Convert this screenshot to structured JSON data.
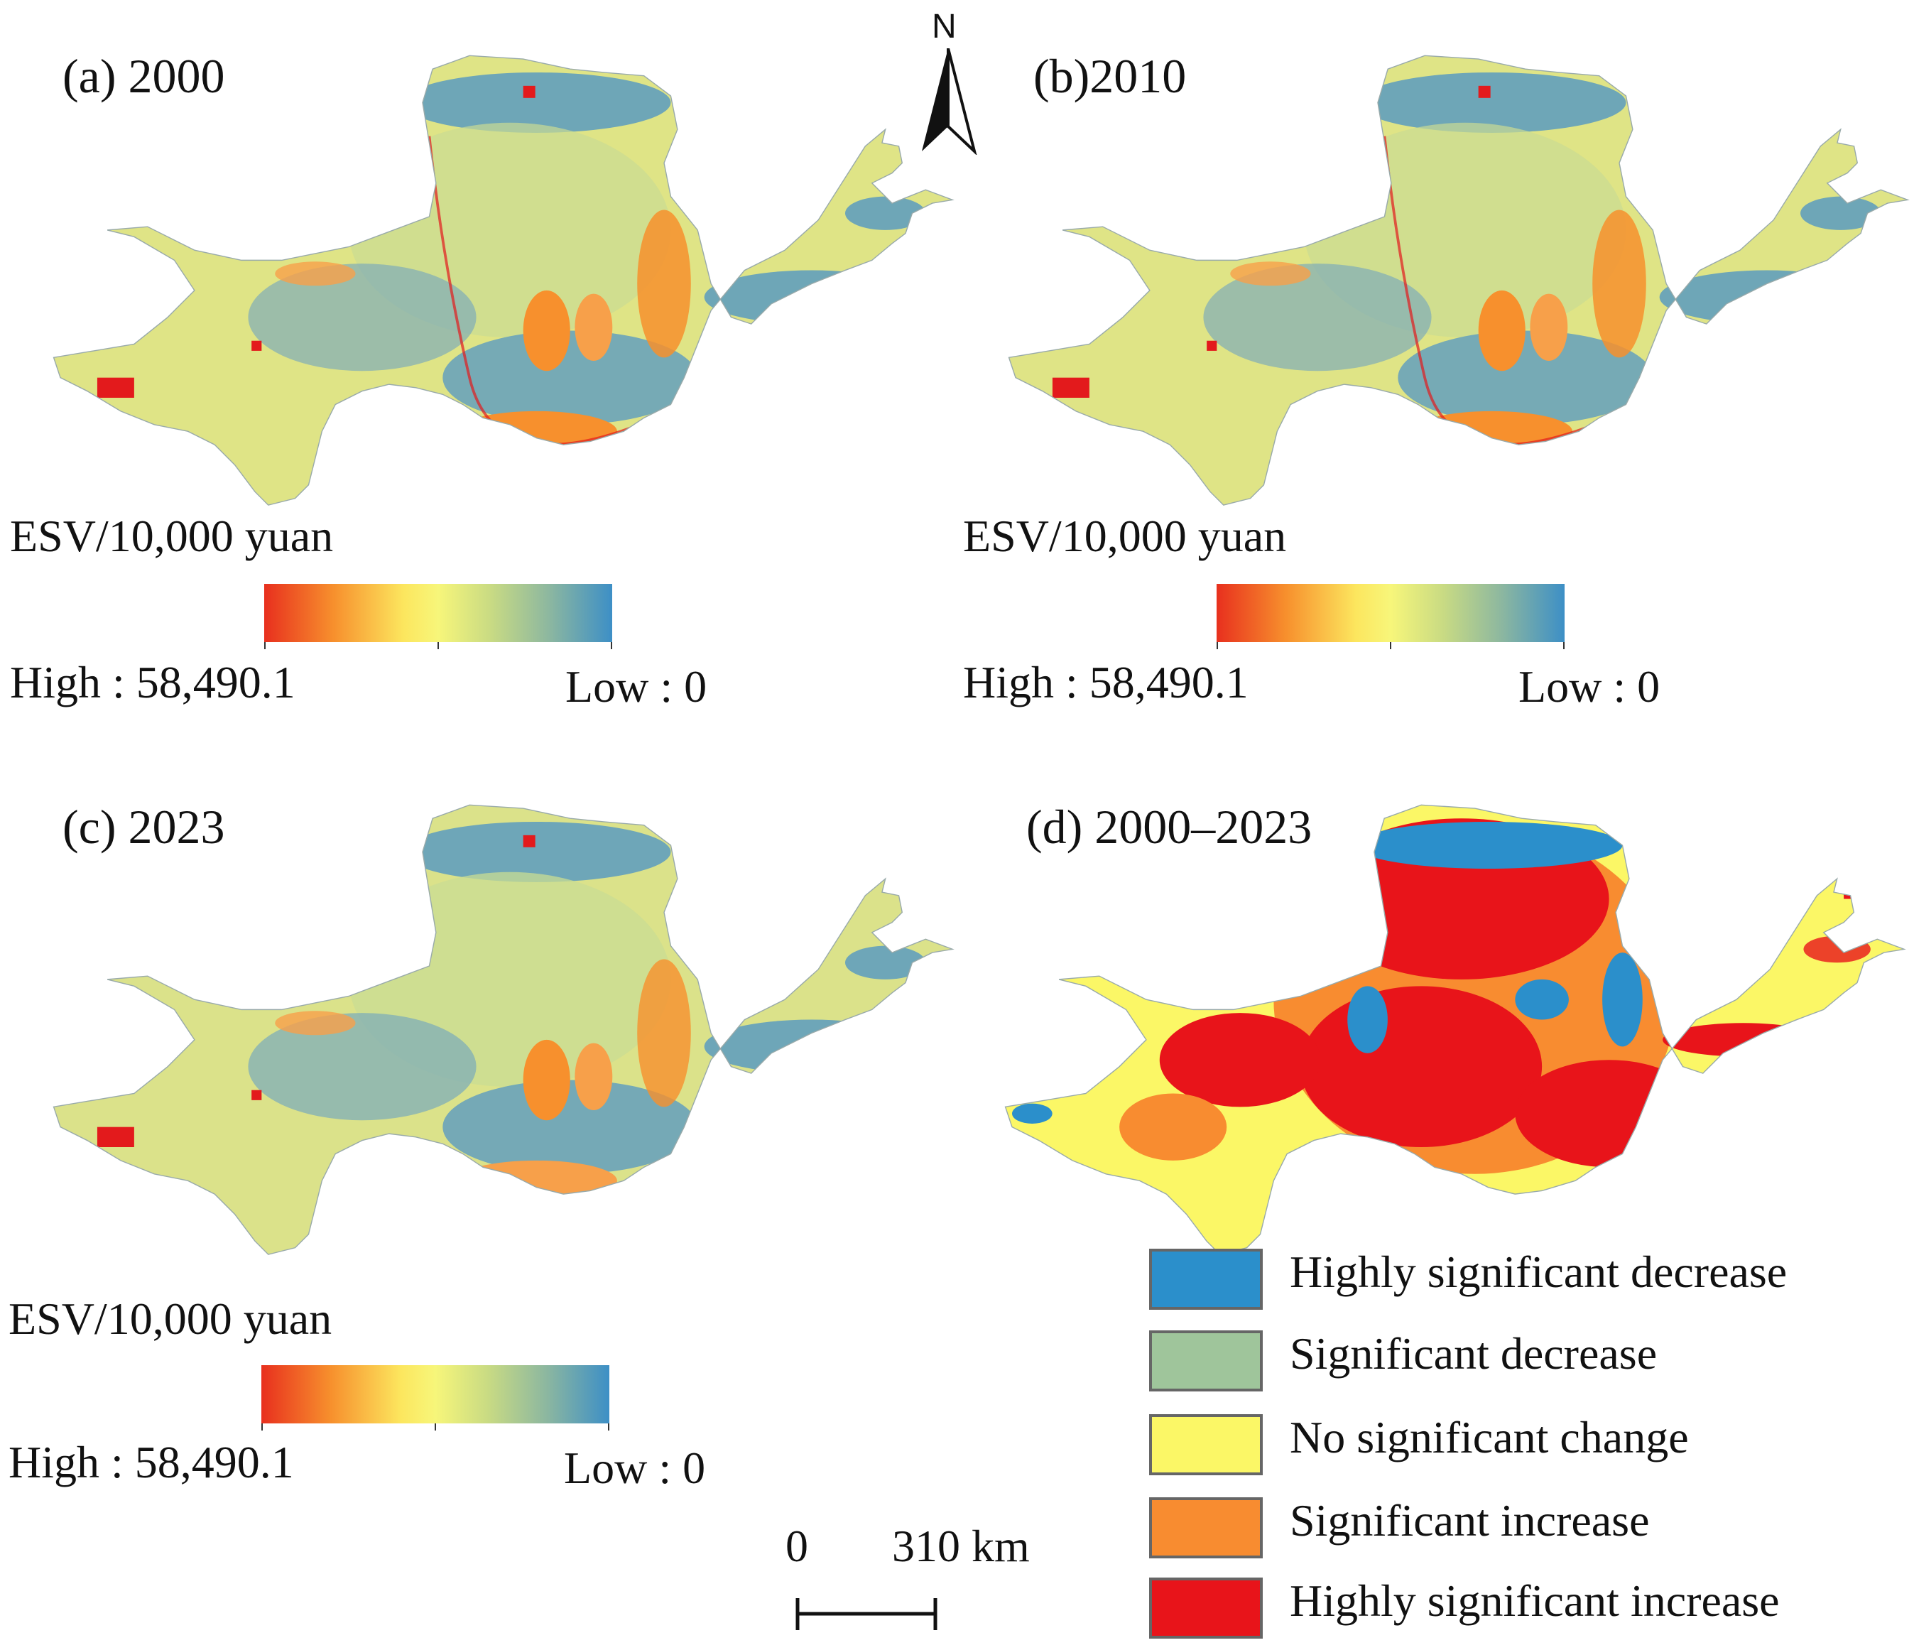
{
  "panels": [
    {
      "title": "(a) 2000"
    },
    {
      "title": "(b)2010"
    },
    {
      "title": "(c) 2023"
    },
    {
      "title": "(d) 2000–2023"
    }
  ],
  "colorbar": {
    "title": "ESV/10,000 yuan",
    "high_label": "High : 58,490.1",
    "low_label": "Low : 0",
    "colors": [
      "#e8301e",
      "#f7902d",
      "#fce65e",
      "#f7f67a",
      "#c9db83",
      "#8cb7a0",
      "#3d8fc6"
    ]
  },
  "north_arrow": {
    "label": "N"
  },
  "scale_bar": {
    "start": "0",
    "end": "310 km"
  },
  "map_colors": {
    "yellow_green": "#dfe486",
    "blue": "#5b9bc0",
    "orange": "#f7902d",
    "red": "#e31a1c"
  },
  "legend": {
    "items": [
      {
        "label": "Highly significant decrease",
        "color": "#2b8fcb"
      },
      {
        "label": "Significant decrease",
        "color": "#9fc59b"
      },
      {
        "label": "No significant change",
        "color": "#fbf766"
      },
      {
        "label": "Significant increase",
        "color": "#f88c30"
      },
      {
        "label": "Highly significant increase",
        "color": "#e8141a"
      }
    ]
  }
}
